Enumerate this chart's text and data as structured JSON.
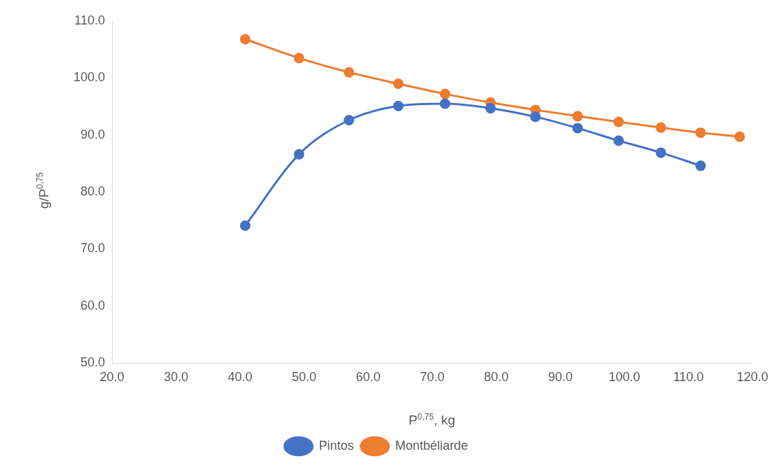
{
  "chart_data": {
    "type": "line",
    "xlabel": "P$^{0,75}$, kg",
    "ylabel": "g/P$^{0,75}$",
    "xlim": [
      20,
      120
    ],
    "xticks": [
      {
        "value": 20,
        "label": "20.0"
      },
      {
        "value": 30,
        "label": "30.0"
      },
      {
        "value": 40,
        "label": "40.0"
      },
      {
        "value": 50,
        "label": "50.0"
      },
      {
        "value": 60,
        "label": "60.0"
      },
      {
        "value": 70,
        "label": "70.0"
      },
      {
        "value": 80,
        "label": "80.0"
      },
      {
        "value": 90,
        "label": "90.0"
      },
      {
        "value": 100,
        "label": "100.0"
      },
      {
        "value": 110,
        "label": "110.0"
      },
      {
        "value": 120,
        "label": "120.0"
      }
    ],
    "ylim": [
      50,
      110
    ],
    "yticks": [
      {
        "value": 50,
        "label": "50.0"
      },
      {
        "value": 60,
        "label": "60.0"
      },
      {
        "value": 70,
        "label": "70.0"
      },
      {
        "value": 80,
        "label": "80.0"
      },
      {
        "value": 90,
        "label": "90.0"
      },
      {
        "value": 100,
        "label": "100.0"
      },
      {
        "value": 110,
        "label": "110.0"
      }
    ],
    "grid": false,
    "legend": "bottom",
    "marker": "circle",
    "line_style": "solid",
    "series": [
      {
        "name": "Pintos",
        "color": "#4472c4",
        "x": [
          40.8,
          49.2,
          57.0,
          64.7,
          72.0,
          79.1,
          86.1,
          92.7,
          99.1,
          105.7,
          111.9
        ],
        "values": [
          74.1,
          86.6,
          92.6,
          95.1,
          95.5,
          94.7,
          93.2,
          91.2,
          89.0,
          86.9,
          84.6
        ]
      },
      {
        "name": "Montbéliarde",
        "color": "#ed7d31",
        "x": [
          40.8,
          49.2,
          57.0,
          64.7,
          72.0,
          79.1,
          86.1,
          92.7,
          99.1,
          105.7,
          111.9,
          118.0
        ],
        "values": [
          106.8,
          103.5,
          101.0,
          99.0,
          97.2,
          95.7,
          94.4,
          93.3,
          92.3,
          91.3,
          90.4,
          89.7
        ]
      }
    ]
  }
}
